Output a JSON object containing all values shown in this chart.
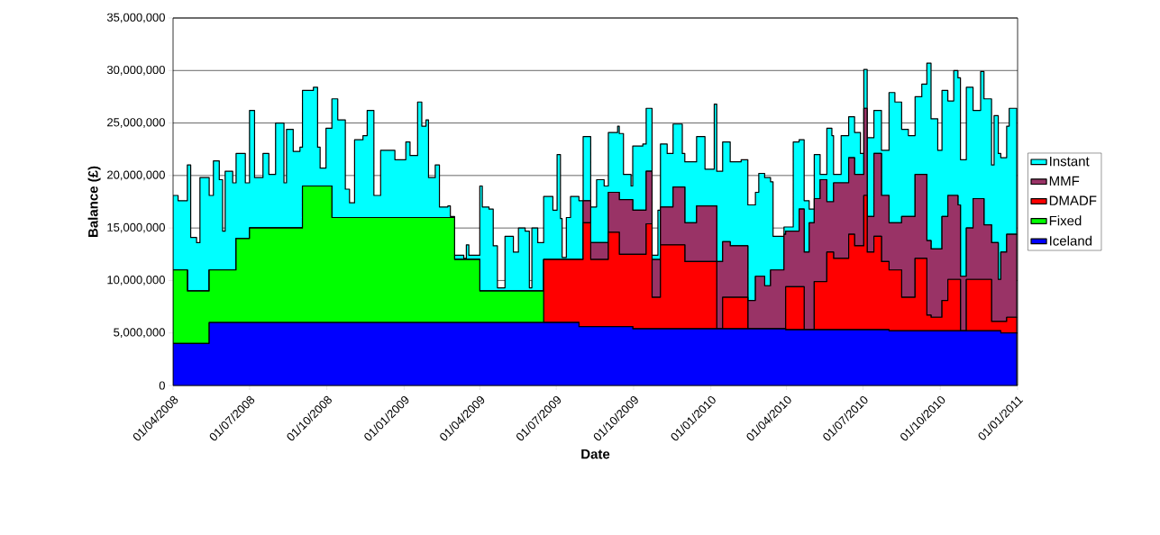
{
  "chart_data": {
    "type": "area",
    "stacked": true,
    "xlabel": "Date",
    "ylabel": "Balance (£)",
    "x": [
      "2008-04-01",
      "2008-04-07",
      "2008-04-18",
      "2008-04-22",
      "2008-04-29",
      "2008-05-03",
      "2008-05-14",
      "2008-05-19",
      "2008-05-26",
      "2008-05-30",
      "2008-06-02",
      "2008-06-11",
      "2008-06-15",
      "2008-06-26",
      "2008-07-01",
      "2008-07-07",
      "2008-07-17",
      "2008-07-24",
      "2008-08-01",
      "2008-08-11",
      "2008-08-14",
      "2008-08-22",
      "2008-08-30",
      "2008-09-02",
      "2008-09-15",
      "2008-09-20",
      "2008-09-23",
      "2008-09-30",
      "2008-10-07",
      "2008-10-14",
      "2008-10-23",
      "2008-10-28",
      "2008-11-03",
      "2008-11-13",
      "2008-11-18",
      "2008-11-26",
      "2008-12-04",
      "2008-12-21",
      "2009-01-03",
      "2009-01-08",
      "2009-01-17",
      "2009-01-22",
      "2009-01-27",
      "2009-01-30",
      "2009-02-07",
      "2009-02-12",
      "2009-02-22",
      "2009-02-25",
      "2009-03-02",
      "2009-03-13",
      "2009-03-16",
      "2009-03-19",
      "2009-04-01",
      "2009-04-04",
      "2009-04-12",
      "2009-04-17",
      "2009-04-22",
      "2009-05-01",
      "2009-05-11",
      "2009-05-17",
      "2009-05-25",
      "2009-05-30",
      "2009-06-02",
      "2009-06-09",
      "2009-06-16",
      "2009-06-27",
      "2009-07-02",
      "2009-07-06",
      "2009-07-08",
      "2009-07-13",
      "2009-07-18",
      "2009-07-28",
      "2009-08-02",
      "2009-08-11",
      "2009-08-18",
      "2009-08-27",
      "2009-09-01",
      "2009-09-12",
      "2009-09-14",
      "2009-09-19",
      "2009-09-28",
      "2009-09-30",
      "2009-10-12",
      "2009-10-16",
      "2009-10-23",
      "2009-10-30",
      "2009-11-02",
      "2009-11-10",
      "2009-11-17",
      "2009-11-28",
      "2009-12-01",
      "2009-12-15",
      "2009-12-25",
      "2010-01-05",
      "2010-01-08",
      "2010-01-15",
      "2010-01-24",
      "2010-02-06",
      "2010-02-14",
      "2010-02-23",
      "2010-02-27",
      "2010-03-06",
      "2010-03-13",
      "2010-03-16",
      "2010-03-29",
      "2010-03-31",
      "2010-04-09",
      "2010-04-16",
      "2010-04-22",
      "2010-04-28",
      "2010-05-04",
      "2010-05-11",
      "2010-05-19",
      "2010-05-25",
      "2010-05-27",
      "2010-06-05",
      "2010-06-14",
      "2010-06-21",
      "2010-06-28",
      "2010-07-02",
      "2010-07-06",
      "2010-07-14",
      "2010-07-23",
      "2010-08-01",
      "2010-08-08",
      "2010-08-16",
      "2010-08-24",
      "2010-09-01",
      "2010-09-09",
      "2010-09-15",
      "2010-09-20",
      "2010-09-28",
      "2010-10-03",
      "2010-10-10",
      "2010-10-17",
      "2010-10-22",
      "2010-10-25",
      "2010-11-01",
      "2010-11-09",
      "2010-11-18",
      "2010-11-22",
      "2010-12-01",
      "2010-12-04",
      "2010-12-09",
      "2010-12-12",
      "2010-12-19",
      "2010-12-22",
      "2010-12-31"
    ],
    "series": [
      {
        "name": "Iceland",
        "color": "#0000ff",
        "values": [
          4000000,
          4000000,
          4000000,
          4000000,
          4000000,
          4000000,
          6000000,
          6000000,
          6000000,
          6000000,
          6000000,
          6000000,
          6000000,
          6000000,
          6000000,
          6000000,
          6000000,
          6000000,
          6000000,
          6000000,
          6000000,
          6000000,
          6000000,
          6000000,
          6000000,
          6000000,
          6000000,
          6000000,
          6000000,
          6000000,
          6000000,
          6000000,
          6000000,
          6000000,
          6000000,
          6000000,
          6000000,
          6000000,
          6000000,
          6000000,
          6000000,
          6000000,
          6000000,
          6000000,
          6000000,
          6000000,
          6000000,
          6000000,
          6000000,
          6000000,
          6000000,
          6000000,
          6000000,
          6000000,
          6000000,
          6000000,
          6000000,
          6000000,
          6000000,
          6000000,
          6000000,
          6000000,
          6000000,
          6000000,
          6000000,
          6000000,
          6000000,
          6000000,
          6000000,
          6000000,
          6000000,
          5600000,
          5600000,
          5600000,
          5600000,
          5600000,
          5600000,
          5600000,
          5600000,
          5600000,
          5600000,
          5400000,
          5400000,
          5400000,
          5400000,
          5400000,
          5400000,
          5400000,
          5400000,
          5400000,
          5400000,
          5400000,
          5400000,
          5400000,
          5400000,
          5400000,
          5400000,
          5400000,
          5400000,
          5400000,
          5400000,
          5400000,
          5400000,
          5400000,
          5400000,
          5300000,
          5300000,
          5300000,
          5300000,
          5300000,
          5300000,
          5300000,
          5300000,
          5300000,
          5300000,
          5300000,
          5300000,
          5300000,
          5300000,
          5300000,
          5300000,
          5300000,
          5300000,
          5200000,
          5200000,
          5200000,
          5200000,
          5200000,
          5200000,
          5200000,
          5200000,
          5200000,
          5200000,
          5200000,
          5200000,
          5200000,
          5200000,
          5200000,
          5200000,
          5200000,
          5200000,
          5200000,
          5200000,
          5200000,
          5000000,
          5000000,
          5000000,
          5000000
        ]
      },
      {
        "name": "Fixed",
        "color": "#00ff00",
        "values": [
          7000000,
          7000000,
          5000000,
          5000000,
          5000000,
          5000000,
          5000000,
          5000000,
          5000000,
          5000000,
          5000000,
          5000000,
          8000000,
          8000000,
          9000000,
          9000000,
          9000000,
          9000000,
          9000000,
          9000000,
          9000000,
          9000000,
          9000000,
          13000000,
          13000000,
          13000000,
          13000000,
          13000000,
          10000000,
          10000000,
          10000000,
          10000000,
          10000000,
          10000000,
          10000000,
          10000000,
          10000000,
          10000000,
          10000000,
          10000000,
          10000000,
          10000000,
          10000000,
          10000000,
          10000000,
          10000000,
          10000000,
          10000000,
          6000000,
          6000000,
          6000000,
          6000000,
          3000000,
          3000000,
          3000000,
          3000000,
          3000000,
          3000000,
          3000000,
          3000000,
          3000000,
          3000000,
          3000000,
          3000000,
          0,
          0,
          0,
          0,
          0,
          0,
          0,
          0,
          0,
          0,
          0,
          0,
          0,
          0,
          0,
          0,
          0,
          0,
          0,
          0,
          0,
          0,
          0,
          0,
          0,
          0,
          0,
          0,
          0,
          0,
          0,
          0,
          0,
          0,
          0,
          0,
          0,
          0,
          0,
          0,
          0,
          0,
          0,
          0,
          0,
          0,
          0,
          0,
          0,
          0,
          0,
          0,
          0,
          0,
          0,
          0,
          0,
          0,
          0,
          0,
          0,
          0,
          0,
          0,
          0,
          0,
          0,
          0,
          0,
          0,
          0,
          0,
          0,
          0,
          0,
          0,
          0,
          0,
          0,
          0,
          0,
          0,
          0,
          0
        ]
      },
      {
        "name": "DMADF",
        "color": "#ff0000",
        "values": [
          0,
          0,
          0,
          0,
          0,
          0,
          0,
          0,
          0,
          0,
          0,
          0,
          0,
          0,
          0,
          0,
          0,
          0,
          0,
          0,
          0,
          0,
          0,
          0,
          0,
          0,
          0,
          0,
          0,
          0,
          0,
          0,
          0,
          0,
          0,
          0,
          0,
          0,
          0,
          0,
          0,
          0,
          0,
          0,
          0,
          0,
          0,
          0,
          0,
          0,
          0,
          0,
          0,
          0,
          0,
          0,
          0,
          0,
          0,
          0,
          0,
          0,
          0,
          0,
          6000000,
          6000000,
          6000000,
          6000000,
          6000000,
          6000000,
          6000000,
          6400000,
          9900000,
          6400000,
          6400000,
          6400000,
          9000000,
          9000000,
          6900000,
          6900000,
          6900000,
          7100000,
          7100000,
          10000000,
          3000000,
          3000000,
          8000000,
          8000000,
          8000000,
          8000000,
          6400000,
          6400000,
          6400000,
          6400000,
          0,
          3000000,
          3000000,
          3000000,
          0,
          0,
          0,
          0,
          0,
          0,
          0,
          4100000,
          4100000,
          4100000,
          0,
          0,
          4600000,
          4600000,
          7400000,
          7400000,
          6800000,
          6800000,
          9100000,
          8000000,
          8000000,
          12800000,
          7400000,
          8900000,
          6500000,
          5800000,
          5800000,
          3200000,
          3200000,
          6900000,
          6900000,
          1500000,
          1300000,
          1300000,
          2900000,
          4900000,
          4900000,
          4900000,
          0,
          4900000,
          4900000,
          4900000,
          4900000,
          900000,
          900000,
          900000,
          1100000,
          1500000,
          1500000,
          1500000
        ]
      },
      {
        "name": "MMF",
        "color": "#993366",
        "values": [
          0,
          0,
          0,
          0,
          0,
          0,
          0,
          0,
          0,
          0,
          0,
          0,
          0,
          0,
          0,
          0,
          0,
          0,
          0,
          0,
          0,
          0,
          0,
          0,
          0,
          0,
          0,
          0,
          0,
          0,
          0,
          0,
          0,
          0,
          0,
          0,
          0,
          0,
          0,
          0,
          0,
          0,
          0,
          0,
          0,
          0,
          0,
          0,
          0,
          0,
          0,
          0,
          0,
          0,
          0,
          0,
          0,
          0,
          0,
          0,
          0,
          0,
          0,
          0,
          0,
          0,
          0,
          0,
          0,
          0,
          0,
          0,
          2100000,
          1600000,
          1600000,
          1600000,
          3800000,
          3800000,
          5200000,
          5200000,
          5200000,
          4200000,
          4200000,
          5000000,
          3600000,
          3600000,
          3600000,
          3600000,
          5500000,
          5500000,
          3700000,
          5300000,
          5300000,
          5300000,
          6400000,
          5300000,
          4900000,
          4900000,
          2700000,
          5000000,
          5000000,
          4100000,
          5600000,
          5600000,
          9000000,
          5300000,
          5300000,
          7400000,
          7400000,
          10200000,
          7900000,
          9700000,
          4800000,
          4800000,
          7200000,
          7200000,
          7300000,
          6800000,
          6800000,
          8300000,
          3400000,
          7900000,
          6300000,
          4500000,
          4500000,
          7700000,
          7700000,
          8000000,
          8000000,
          7100000,
          6500000,
          6500000,
          8000000,
          8000000,
          8000000,
          7100000,
          5200000,
          4900000,
          7700000,
          7700000,
          5200000,
          7500000,
          7500000,
          4000000,
          6600000,
          7900000,
          7900000,
          7900000
        ]
      },
      {
        "name": "Instant",
        "color": "#00ffff",
        "values": [
          7100000,
          6600000,
          12000000,
          5100000,
          4600000,
          10800000,
          7100000,
          10400000,
          8600000,
          3700000,
          9400000,
          8300000,
          8100000,
          5300000,
          11200000,
          4800000,
          7100000,
          5100000,
          10000000,
          4300000,
          9400000,
          7300000,
          7700000,
          9100000,
          9400000,
          3700000,
          1700000,
          5500000,
          11300000,
          9300000,
          2700000,
          1400000,
          7400000,
          7800000,
          10200000,
          2100000,
          6400000,
          5500000,
          7200000,
          5900000,
          11000000,
          8700000,
          9300000,
          3800000,
          5000000,
          1000000,
          1100000,
          100000,
          400000,
          100000,
          1400000,
          400000,
          10000000,
          8000000,
          7800000,
          4300000,
          300000,
          5200000,
          3700000,
          6000000,
          5700000,
          300000,
          6000000,
          4600000,
          6000000,
          4700000,
          10000000,
          3900000,
          200000,
          4000000,
          6000000,
          5600000,
          6100000,
          3400000,
          6000000,
          5400000,
          5700000,
          6300000,
          6300000,
          2400000,
          1300000,
          6100000,
          6300000,
          6000000,
          400000,
          4700000,
          6000000,
          5100000,
          6000000,
          3200000,
          5800000,
          6600000,
          3500000,
          9700000,
          8600000,
          9500000,
          8000000,
          8200000,
          9100000,
          8000000,
          9800000,
          10300000,
          8400000,
          3200000,
          700000,
          400000,
          8500000,
          6600000,
          4900000,
          1300000,
          4200000,
          500000,
          7000000,
          6300000,
          800000,
          4500000,
          3900000,
          4000000,
          2000000,
          3700000,
          7500000,
          4100000,
          4300000,
          12400000,
          11500000,
          8300000,
          7700000,
          7400000,
          8600000,
          16900000,
          12400000,
          9400000,
          12000000,
          9000000,
          11900000,
          12100000,
          11100000,
          13400000,
          8400000,
          12100000,
          12000000,
          7400000,
          12100000,
          12000000,
          9000000,
          10300000,
          12000000,
          12000000
        ]
      }
    ],
    "xlim": [
      "2008-04-01",
      "2011-01-01"
    ],
    "xticks": [
      {
        "value": "2008-04-01",
        "label": "01/04/2008"
      },
      {
        "value": "2008-07-01",
        "label": "01/07/2008"
      },
      {
        "value": "2008-10-01",
        "label": "01/10/2008"
      },
      {
        "value": "2009-01-01",
        "label": "01/01/2009"
      },
      {
        "value": "2009-04-01",
        "label": "01/04/2009"
      },
      {
        "value": "2009-07-01",
        "label": "01/07/2009"
      },
      {
        "value": "2009-10-01",
        "label": "01/10/2009"
      },
      {
        "value": "2010-01-01",
        "label": "01/01/2010"
      },
      {
        "value": "2010-04-01",
        "label": "01/04/2010"
      },
      {
        "value": "2010-07-01",
        "label": "01/07/2010"
      },
      {
        "value": "2010-10-01",
        "label": "01/10/2010"
      },
      {
        "value": "2011-01-01",
        "label": "01/01/2011"
      }
    ],
    "ylim": [
      0,
      35000000
    ],
    "yticks": [
      0,
      {
        "value": 5000000,
        "label": "5,000,000"
      },
      {
        "value": 10000000,
        "label": "10,000,000"
      },
      {
        "value": 15000000,
        "label": "15,000,000"
      },
      {
        "value": 20000000,
        "label": "20,000,000"
      },
      {
        "value": 25000000,
        "label": "25,000,000"
      },
      {
        "value": 30000000,
        "label": "30,000,000"
      },
      {
        "value": 35000000,
        "label": "35,000,000"
      }
    ],
    "grid": "y",
    "legend": "right"
  }
}
